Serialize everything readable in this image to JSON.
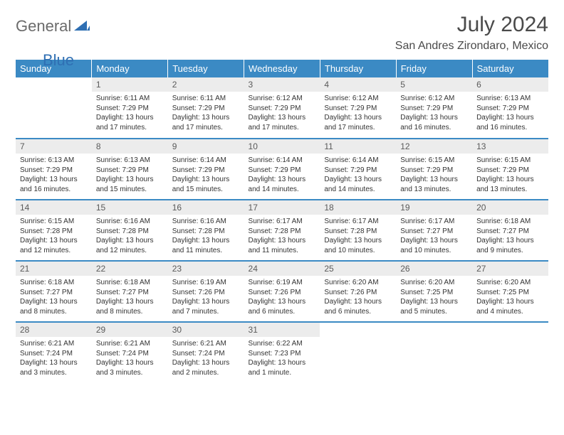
{
  "brand": {
    "part1": "General",
    "part2": "Blue",
    "color1": "#6b6b6b",
    "color2": "#2f6fb3"
  },
  "header": {
    "title": "July 2024",
    "location": "San Andres Zirondaro, Mexico"
  },
  "theme": {
    "header_bg": "#3b8ac4",
    "header_text": "#ffffff",
    "daynum_bg": "#ececec",
    "daynum_text": "#5a5a5a",
    "body_text": "#333333",
    "row_divider": "#3b8ac4",
    "page_bg": "#ffffff"
  },
  "weekdays": [
    "Sunday",
    "Monday",
    "Tuesday",
    "Wednesday",
    "Thursday",
    "Friday",
    "Saturday"
  ],
  "weeks": [
    [
      {
        "n": "",
        "sr": "",
        "ss": "",
        "dl": ""
      },
      {
        "n": "1",
        "sr": "Sunrise: 6:11 AM",
        "ss": "Sunset: 7:29 PM",
        "dl": "Daylight: 13 hours and 17 minutes."
      },
      {
        "n": "2",
        "sr": "Sunrise: 6:11 AM",
        "ss": "Sunset: 7:29 PM",
        "dl": "Daylight: 13 hours and 17 minutes."
      },
      {
        "n": "3",
        "sr": "Sunrise: 6:12 AM",
        "ss": "Sunset: 7:29 PM",
        "dl": "Daylight: 13 hours and 17 minutes."
      },
      {
        "n": "4",
        "sr": "Sunrise: 6:12 AM",
        "ss": "Sunset: 7:29 PM",
        "dl": "Daylight: 13 hours and 17 minutes."
      },
      {
        "n": "5",
        "sr": "Sunrise: 6:12 AM",
        "ss": "Sunset: 7:29 PM",
        "dl": "Daylight: 13 hours and 16 minutes."
      },
      {
        "n": "6",
        "sr": "Sunrise: 6:13 AM",
        "ss": "Sunset: 7:29 PM",
        "dl": "Daylight: 13 hours and 16 minutes."
      }
    ],
    [
      {
        "n": "7",
        "sr": "Sunrise: 6:13 AM",
        "ss": "Sunset: 7:29 PM",
        "dl": "Daylight: 13 hours and 16 minutes."
      },
      {
        "n": "8",
        "sr": "Sunrise: 6:13 AM",
        "ss": "Sunset: 7:29 PM",
        "dl": "Daylight: 13 hours and 15 minutes."
      },
      {
        "n": "9",
        "sr": "Sunrise: 6:14 AM",
        "ss": "Sunset: 7:29 PM",
        "dl": "Daylight: 13 hours and 15 minutes."
      },
      {
        "n": "10",
        "sr": "Sunrise: 6:14 AM",
        "ss": "Sunset: 7:29 PM",
        "dl": "Daylight: 13 hours and 14 minutes."
      },
      {
        "n": "11",
        "sr": "Sunrise: 6:14 AM",
        "ss": "Sunset: 7:29 PM",
        "dl": "Daylight: 13 hours and 14 minutes."
      },
      {
        "n": "12",
        "sr": "Sunrise: 6:15 AM",
        "ss": "Sunset: 7:29 PM",
        "dl": "Daylight: 13 hours and 13 minutes."
      },
      {
        "n": "13",
        "sr": "Sunrise: 6:15 AM",
        "ss": "Sunset: 7:29 PM",
        "dl": "Daylight: 13 hours and 13 minutes."
      }
    ],
    [
      {
        "n": "14",
        "sr": "Sunrise: 6:15 AM",
        "ss": "Sunset: 7:28 PM",
        "dl": "Daylight: 13 hours and 12 minutes."
      },
      {
        "n": "15",
        "sr": "Sunrise: 6:16 AM",
        "ss": "Sunset: 7:28 PM",
        "dl": "Daylight: 13 hours and 12 minutes."
      },
      {
        "n": "16",
        "sr": "Sunrise: 6:16 AM",
        "ss": "Sunset: 7:28 PM",
        "dl": "Daylight: 13 hours and 11 minutes."
      },
      {
        "n": "17",
        "sr": "Sunrise: 6:17 AM",
        "ss": "Sunset: 7:28 PM",
        "dl": "Daylight: 13 hours and 11 minutes."
      },
      {
        "n": "18",
        "sr": "Sunrise: 6:17 AM",
        "ss": "Sunset: 7:28 PM",
        "dl": "Daylight: 13 hours and 10 minutes."
      },
      {
        "n": "19",
        "sr": "Sunrise: 6:17 AM",
        "ss": "Sunset: 7:27 PM",
        "dl": "Daylight: 13 hours and 10 minutes."
      },
      {
        "n": "20",
        "sr": "Sunrise: 6:18 AM",
        "ss": "Sunset: 7:27 PM",
        "dl": "Daylight: 13 hours and 9 minutes."
      }
    ],
    [
      {
        "n": "21",
        "sr": "Sunrise: 6:18 AM",
        "ss": "Sunset: 7:27 PM",
        "dl": "Daylight: 13 hours and 8 minutes."
      },
      {
        "n": "22",
        "sr": "Sunrise: 6:18 AM",
        "ss": "Sunset: 7:27 PM",
        "dl": "Daylight: 13 hours and 8 minutes."
      },
      {
        "n": "23",
        "sr": "Sunrise: 6:19 AM",
        "ss": "Sunset: 7:26 PM",
        "dl": "Daylight: 13 hours and 7 minutes."
      },
      {
        "n": "24",
        "sr": "Sunrise: 6:19 AM",
        "ss": "Sunset: 7:26 PM",
        "dl": "Daylight: 13 hours and 6 minutes."
      },
      {
        "n": "25",
        "sr": "Sunrise: 6:20 AM",
        "ss": "Sunset: 7:26 PM",
        "dl": "Daylight: 13 hours and 6 minutes."
      },
      {
        "n": "26",
        "sr": "Sunrise: 6:20 AM",
        "ss": "Sunset: 7:25 PM",
        "dl": "Daylight: 13 hours and 5 minutes."
      },
      {
        "n": "27",
        "sr": "Sunrise: 6:20 AM",
        "ss": "Sunset: 7:25 PM",
        "dl": "Daylight: 13 hours and 4 minutes."
      }
    ],
    [
      {
        "n": "28",
        "sr": "Sunrise: 6:21 AM",
        "ss": "Sunset: 7:24 PM",
        "dl": "Daylight: 13 hours and 3 minutes."
      },
      {
        "n": "29",
        "sr": "Sunrise: 6:21 AM",
        "ss": "Sunset: 7:24 PM",
        "dl": "Daylight: 13 hours and 3 minutes."
      },
      {
        "n": "30",
        "sr": "Sunrise: 6:21 AM",
        "ss": "Sunset: 7:24 PM",
        "dl": "Daylight: 13 hours and 2 minutes."
      },
      {
        "n": "31",
        "sr": "Sunrise: 6:22 AM",
        "ss": "Sunset: 7:23 PM",
        "dl": "Daylight: 13 hours and 1 minute."
      },
      {
        "n": "",
        "sr": "",
        "ss": "",
        "dl": ""
      },
      {
        "n": "",
        "sr": "",
        "ss": "",
        "dl": ""
      },
      {
        "n": "",
        "sr": "",
        "ss": "",
        "dl": ""
      }
    ]
  ]
}
